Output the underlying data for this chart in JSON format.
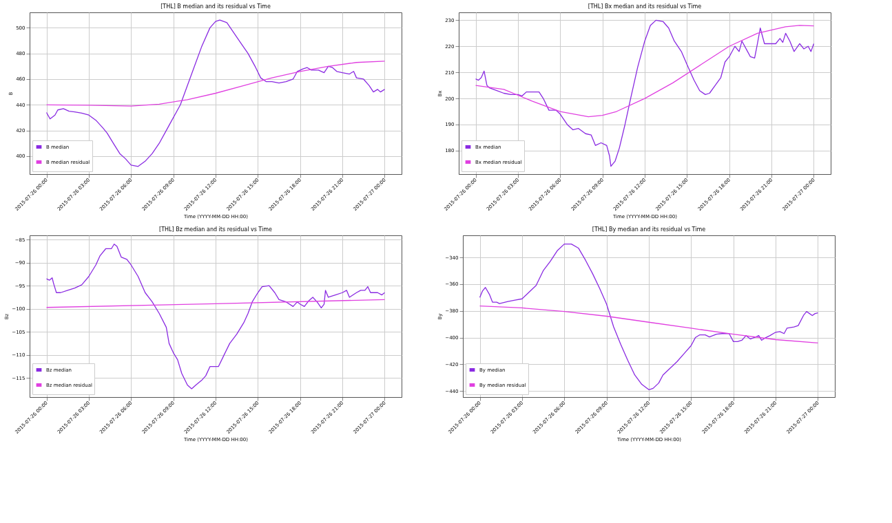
{
  "chart_data": [
    {
      "type": "line",
      "title": "[THL] B median and its residual vs Time",
      "xlabel": "Time (YYYY-MM-DD HH:00)",
      "ylabel": "B",
      "xlim": [
        "2015-07-25T22:48",
        "2015-07-27T01:12"
      ],
      "ylim": [
        386,
        512
      ],
      "xticks": [
        {
          "value": "2015-07-26T00:00",
          "label": "2015-07-26 00:00"
        },
        {
          "value": "2015-07-26T03:00",
          "label": "2015-07-26 03:00"
        },
        {
          "value": "2015-07-26T06:00",
          "label": "2015-07-26 06:00"
        },
        {
          "value": "2015-07-26T09:00",
          "label": "2015-07-26 09:00"
        },
        {
          "value": "2015-07-26T12:00",
          "label": "2015-07-26 12:00"
        },
        {
          "value": "2015-07-26T15:00",
          "label": "2015-07-26 15:00"
        },
        {
          "value": "2015-07-26T18:00",
          "label": "2015-07-26 18:00"
        },
        {
          "value": "2015-07-26T21:00",
          "label": "2015-07-26 21:00"
        },
        {
          "value": "2015-07-27T00:00",
          "label": "2015-07-27 00:00"
        }
      ],
      "yticks": [
        400,
        420,
        440,
        460,
        480,
        500
      ],
      "grid": true,
      "legend": "bottom left",
      "line_style": "solid",
      "series": [
        {
          "name": "B median",
          "color": "#8a2be2",
          "x": [
            "2015-07-26T00:00",
            "2015-07-26T00:15",
            "2015-07-26T00:36",
            "2015-07-26T00:48",
            "2015-07-26T01:12",
            "2015-07-26T01:36",
            "2015-07-26T02:00",
            "2015-07-26T02:30",
            "2015-07-26T03:00",
            "2015-07-26T03:30",
            "2015-07-26T04:00",
            "2015-07-26T04:18",
            "2015-07-26T04:48",
            "2015-07-26T05:12",
            "2015-07-26T05:36",
            "2015-07-26T06:00",
            "2015-07-26T06:30",
            "2015-07-26T07:00",
            "2015-07-26T07:30",
            "2015-07-26T08:00",
            "2015-07-26T08:30",
            "2015-07-26T09:00",
            "2015-07-26T09:30",
            "2015-07-26T10:00",
            "2015-07-26T10:30",
            "2015-07-26T11:00",
            "2015-07-26T11:36",
            "2015-07-26T12:00",
            "2015-07-26T12:18",
            "2015-07-26T12:48",
            "2015-07-26T13:18",
            "2015-07-26T13:48",
            "2015-07-26T14:18",
            "2015-07-26T14:48",
            "2015-07-26T15:12",
            "2015-07-26T15:36",
            "2015-07-26T16:00",
            "2015-07-26T16:30",
            "2015-07-26T17:00",
            "2015-07-26T17:30",
            "2015-07-26T17:48",
            "2015-07-26T18:12",
            "2015-07-26T18:30",
            "2015-07-26T18:48",
            "2015-07-26T19:18",
            "2015-07-26T19:42",
            "2015-07-26T20:00",
            "2015-07-26T20:18",
            "2015-07-26T20:36",
            "2015-07-26T21:00",
            "2015-07-26T21:30",
            "2015-07-26T21:48",
            "2015-07-26T22:00",
            "2015-07-26T22:30",
            "2015-07-26T22:54",
            "2015-07-26T23:12",
            "2015-07-26T23:30",
            "2015-07-26T23:42",
            "2015-07-27T00:00"
          ],
          "values": [
            434,
            429,
            432,
            436,
            437,
            435,
            434.5,
            433.5,
            432,
            428,
            422,
            418,
            409,
            402,
            398,
            393,
            392,
            396,
            402,
            410,
            420,
            430,
            440,
            455,
            470,
            485,
            500,
            505,
            506,
            504,
            496,
            488,
            480,
            470,
            461,
            458,
            458,
            457,
            458,
            460,
            466,
            468,
            469,
            467,
            467,
            465,
            470,
            469,
            466,
            465,
            464,
            466,
            461,
            460,
            455,
            450,
            452,
            450,
            452
          ]
        },
        {
          "name": "B median residual",
          "color": "#e040e0",
          "x": [
            "2015-07-26T00:00",
            "2015-07-26T03:00",
            "2015-07-26T06:00",
            "2015-07-26T08:00",
            "2015-07-26T10:00",
            "2015-07-26T12:00",
            "2015-07-26T14:00",
            "2015-07-26T16:00",
            "2015-07-26T18:00",
            "2015-07-26T20:00",
            "2015-07-26T22:00",
            "2015-07-27T00:00"
          ],
          "values": [
            440,
            439.7,
            439,
            440.5,
            444,
            449,
            455,
            461,
            466,
            470,
            473,
            474
          ]
        }
      ]
    },
    {
      "type": "line",
      "title": "[THL] Bx median and its residual vs Time",
      "xlabel": "Time (YYYY-MM-DD HH:00)",
      "ylabel": "Bx",
      "xlim": [
        "2015-07-25T22:48",
        "2015-07-27T01:12"
      ],
      "ylim": [
        171,
        233
      ],
      "xticks": [
        {
          "value": "2015-07-26T00:00",
          "label": "2015-07-26 00:00"
        },
        {
          "value": "2015-07-26T03:00",
          "label": "2015-07-26 03:00"
        },
        {
          "value": "2015-07-26T06:00",
          "label": "2015-07-26 06:00"
        },
        {
          "value": "2015-07-26T09:00",
          "label": "2015-07-26 09:00"
        },
        {
          "value": "2015-07-26T12:00",
          "label": "2015-07-26 12:00"
        },
        {
          "value": "2015-07-26T15:00",
          "label": "2015-07-26 15:00"
        },
        {
          "value": "2015-07-26T18:00",
          "label": "2015-07-26 18:00"
        },
        {
          "value": "2015-07-26T21:00",
          "label": "2015-07-26 21:00"
        },
        {
          "value": "2015-07-27T00:00",
          "label": "2015-07-27 00:00"
        }
      ],
      "yticks": [
        180,
        190,
        200,
        210,
        220,
        230
      ],
      "grid": true,
      "legend": "bottom left",
      "line_style": "solid",
      "series": [
        {
          "name": "Bx median",
          "color": "#8a2be2",
          "x": [
            "2015-07-26T00:00",
            "2015-07-26T00:12",
            "2015-07-26T00:24",
            "2015-07-26T00:36",
            "2015-07-26T00:48",
            "2015-07-26T01:00",
            "2015-07-26T01:30",
            "2015-07-26T02:00",
            "2015-07-26T02:30",
            "2015-07-26T03:00",
            "2015-07-26T03:18",
            "2015-07-26T03:36",
            "2015-07-26T04:00",
            "2015-07-26T04:30",
            "2015-07-26T04:48",
            "2015-07-26T05:12",
            "2015-07-26T05:42",
            "2015-07-26T06:00",
            "2015-07-26T06:30",
            "2015-07-26T06:54",
            "2015-07-26T07:18",
            "2015-07-26T07:48",
            "2015-07-26T08:12",
            "2015-07-26T08:30",
            "2015-07-26T08:54",
            "2015-07-26T09:18",
            "2015-07-26T09:30",
            "2015-07-26T09:36",
            "2015-07-26T09:54",
            "2015-07-26T10:12",
            "2015-07-26T10:36",
            "2015-07-26T11:00",
            "2015-07-26T11:30",
            "2015-07-26T12:00",
            "2015-07-26T12:24",
            "2015-07-26T12:48",
            "2015-07-26T13:18",
            "2015-07-26T13:42",
            "2015-07-26T14:06",
            "2015-07-26T14:36",
            "2015-07-26T15:00",
            "2015-07-26T15:30",
            "2015-07-26T15:54",
            "2015-07-26T16:18",
            "2015-07-26T16:36",
            "2015-07-26T17:00",
            "2015-07-26T17:24",
            "2015-07-26T17:42",
            "2015-07-26T18:00",
            "2015-07-26T18:24",
            "2015-07-26T18:42",
            "2015-07-26T18:54",
            "2015-07-26T19:18",
            "2015-07-26T19:30",
            "2015-07-26T19:48",
            "2015-07-26T20:00",
            "2015-07-26T20:12",
            "2015-07-26T20:30",
            "2015-07-26T21:00",
            "2015-07-26T21:18",
            "2015-07-26T21:36",
            "2015-07-26T21:48",
            "2015-07-26T22:00",
            "2015-07-26T22:18",
            "2015-07-26T22:36",
            "2015-07-26T23:00",
            "2015-07-26T23:18",
            "2015-07-26T23:36",
            "2015-07-26T23:48",
            "2015-07-27T00:00"
          ],
          "values": [
            207.5,
            207,
            208,
            210.5,
            205,
            204,
            203,
            202,
            201.5,
            201.5,
            201,
            202.5,
            202.5,
            202.5,
            200,
            195.5,
            195.5,
            194,
            190,
            188,
            188.5,
            186.5,
            186,
            182,
            183,
            182,
            178,
            174,
            176,
            181,
            190,
            200,
            212,
            222,
            228,
            230,
            229.5,
            227,
            222,
            218,
            213,
            207,
            203,
            201.5,
            202,
            205,
            208,
            214,
            216,
            220,
            218,
            222,
            218,
            216,
            215.5,
            221,
            227,
            221,
            221,
            221,
            223,
            221.5,
            225,
            222,
            218,
            221,
            219,
            220,
            218,
            221
          ]
        },
        {
          "name": "Bx median residual",
          "color": "#e040e0",
          "x": [
            "2015-07-26T00:00",
            "2015-07-26T02:00",
            "2015-07-26T04:00",
            "2015-07-26T06:00",
            "2015-07-26T08:00",
            "2015-07-26T09:00",
            "2015-07-26T10:00",
            "2015-07-26T12:00",
            "2015-07-26T14:00",
            "2015-07-26T16:00",
            "2015-07-26T18:00",
            "2015-07-26T20:00",
            "2015-07-26T22:00",
            "2015-07-26T23:00",
            "2015-07-27T00:00"
          ],
          "values": [
            205,
            203.5,
            199,
            195,
            193,
            193.5,
            195,
            200,
            206,
            213,
            220,
            225,
            227.5,
            228,
            227.8
          ]
        }
      ]
    },
    {
      "type": "line",
      "title": "[THL] Bz median and its residual vs Time",
      "xlabel": "Time (YYYY-MM-DD HH:00)",
      "ylabel": "Bz",
      "xlim": [
        "2015-07-25T22:48",
        "2015-07-27T01:12"
      ],
      "ylim": [
        -119.1,
        -84.1
      ],
      "xticks": [
        {
          "value": "2015-07-26T00:00",
          "label": "2015-07-26 00:00"
        },
        {
          "value": "2015-07-26T03:00",
          "label": "2015-07-26 03:00"
        },
        {
          "value": "2015-07-26T06:00",
          "label": "2015-07-26 06:00"
        },
        {
          "value": "2015-07-26T09:00",
          "label": "2015-07-26 09:00"
        },
        {
          "value": "2015-07-26T12:00",
          "label": "2015-07-26 12:00"
        },
        {
          "value": "2015-07-26T15:00",
          "label": "2015-07-26 15:00"
        },
        {
          "value": "2015-07-26T18:00",
          "label": "2015-07-26 18:00"
        },
        {
          "value": "2015-07-26T21:00",
          "label": "2015-07-26 21:00"
        },
        {
          "value": "2015-07-27T00:00",
          "label": "2015-07-27 00:00"
        }
      ],
      "yticks": [
        -115,
        -110,
        -105,
        -100,
        -95,
        -90,
        -85
      ],
      "grid": true,
      "legend": "bottom left",
      "line_style": "solid",
      "series": [
        {
          "name": "Bz median",
          "color": "#8a2be2",
          "x": [
            "2015-07-26T00:00",
            "2015-07-26T00:12",
            "2015-07-26T00:24",
            "2015-07-26T00:30",
            "2015-07-26T00:42",
            "2015-07-26T01:00",
            "2015-07-26T01:30",
            "2015-07-26T02:00",
            "2015-07-26T02:30",
            "2015-07-26T03:00",
            "2015-07-26T03:30",
            "2015-07-26T03:48",
            "2015-07-26T04:12",
            "2015-07-26T04:36",
            "2015-07-26T04:48",
            "2015-07-26T05:00",
            "2015-07-26T05:18",
            "2015-07-26T05:42",
            "2015-07-26T06:00",
            "2015-07-26T06:30",
            "2015-07-26T07:00",
            "2015-07-26T07:30",
            "2015-07-26T08:00",
            "2015-07-26T08:30",
            "2015-07-26T08:42",
            "2015-07-26T09:00",
            "2015-07-26T09:18",
            "2015-07-26T09:36",
            "2015-07-26T10:00",
            "2015-07-26T10:18",
            "2015-07-26T10:36",
            "2015-07-26T11:00",
            "2015-07-26T11:18",
            "2015-07-26T11:36",
            "2015-07-26T12:00",
            "2015-07-26T12:12",
            "2015-07-26T12:36",
            "2015-07-26T13:00",
            "2015-07-26T13:30",
            "2015-07-26T14:00",
            "2015-07-26T14:18",
            "2015-07-26T14:36",
            "2015-07-26T15:00",
            "2015-07-26T15:18",
            "2015-07-26T15:48",
            "2015-07-26T16:12",
            "2015-07-26T16:30",
            "2015-07-26T17:00",
            "2015-07-26T17:30",
            "2015-07-26T17:48",
            "2015-07-26T18:00",
            "2015-07-26T18:18",
            "2015-07-26T18:36",
            "2015-07-26T18:54",
            "2015-07-26T19:12",
            "2015-07-26T19:30",
            "2015-07-26T19:42",
            "2015-07-26T19:48",
            "2015-07-26T20:00",
            "2015-07-26T20:30",
            "2015-07-26T21:00",
            "2015-07-26T21:18",
            "2015-07-26T21:30",
            "2015-07-26T22:00",
            "2015-07-26T22:18",
            "2015-07-26T22:36",
            "2015-07-26T22:48",
            "2015-07-26T23:00",
            "2015-07-26T23:30",
            "2015-07-26T23:48",
            "2015-07-27T00:00"
          ],
          "values": [
            -93.5,
            -93.8,
            -93.3,
            -94.5,
            -96.5,
            -96.5,
            -96,
            -95.5,
            -94.8,
            -93,
            -90.5,
            -88.5,
            -87,
            -87,
            -86,
            -86.5,
            -88.8,
            -89.3,
            -90.5,
            -93,
            -96.5,
            -98.5,
            -101,
            -104,
            -107.5,
            -109.5,
            -111,
            -114,
            -116.5,
            -117.3,
            -116.5,
            -115.5,
            -114.5,
            -112.5,
            -112.5,
            -112.5,
            -110,
            -107.5,
            -105.5,
            -103,
            -101,
            -98.5,
            -96.5,
            -95.2,
            -95,
            -96.5,
            -98,
            -98.5,
            -99.5,
            -98.5,
            -99,
            -99.5,
            -98.3,
            -97.5,
            -98.5,
            -99.8,
            -99,
            -96,
            -97.5,
            -97,
            -96.5,
            -96,
            -97.5,
            -96.5,
            -96,
            -96,
            -95.2,
            -96.5,
            -96.5,
            -97,
            -96.5
          ]
        },
        {
          "name": "Bz median residual",
          "color": "#e040e0",
          "x": [
            "2015-07-26T00:00",
            "2015-07-26T12:00",
            "2015-07-27T00:00"
          ],
          "values": [
            -99.7,
            -98.9,
            -98.0
          ]
        }
      ]
    },
    {
      "type": "line",
      "title": "[THL] By median and its residual vs Time",
      "xlabel": "Time (YYYY-MM-DD HH:00)",
      "ylabel": "By",
      "xlim": [
        "2015-07-25T22:48",
        "2015-07-27T01:12"
      ],
      "ylim": [
        -444.5,
        -323.5
      ],
      "xticks": [
        {
          "value": "2015-07-26T00:00",
          "label": "2015-07-26 00:00"
        },
        {
          "value": "2015-07-26T03:00",
          "label": "2015-07-26 03:00"
        },
        {
          "value": "2015-07-26T06:00",
          "label": "2015-07-26 06:00"
        },
        {
          "value": "2015-07-26T09:00",
          "label": "2015-07-26 09:00"
        },
        {
          "value": "2015-07-26T12:00",
          "label": "2015-07-26 12:00"
        },
        {
          "value": "2015-07-26T15:00",
          "label": "2015-07-26 15:00"
        },
        {
          "value": "2015-07-26T18:00",
          "label": "2015-07-26 18:00"
        },
        {
          "value": "2015-07-26T21:00",
          "label": "2015-07-26 21:00"
        },
        {
          "value": "2015-07-27T00:00",
          "label": "2015-07-27 00:00"
        }
      ],
      "yticks": [
        -440,
        -420,
        -400,
        -380,
        -360,
        -340
      ],
      "grid": true,
      "legend": "bottom left",
      "line_style": "solid",
      "series": [
        {
          "name": "By median",
          "color": "#8a2be2",
          "x": [
            "2015-07-26T00:00",
            "2015-07-26T00:12",
            "2015-07-26T00:24",
            "2015-07-26T00:42",
            "2015-07-26T00:54",
            "2015-07-26T01:12",
            "2015-07-26T01:24",
            "2015-07-26T02:00",
            "2015-07-26T02:30",
            "2015-07-26T03:00",
            "2015-07-26T03:30",
            "2015-07-26T04:00",
            "2015-07-26T04:30",
            "2015-07-26T05:00",
            "2015-07-26T05:30",
            "2015-07-26T06:00",
            "2015-07-26T06:30",
            "2015-07-26T07:00",
            "2015-07-26T07:30",
            "2015-07-26T08:00",
            "2015-07-26T08:30",
            "2015-07-26T09:00",
            "2015-07-26T09:30",
            "2015-07-26T10:00",
            "2015-07-26T10:30",
            "2015-07-26T11:00",
            "2015-07-26T11:30",
            "2015-07-26T12:00",
            "2015-07-26T12:18",
            "2015-07-26T12:42",
            "2015-07-26T13:00",
            "2015-07-26T13:30",
            "2015-07-26T14:00",
            "2015-07-26T14:30",
            "2015-07-26T15:00",
            "2015-07-26T15:18",
            "2015-07-26T15:36",
            "2015-07-26T16:00",
            "2015-07-26T16:18",
            "2015-07-26T16:48",
            "2015-07-26T17:12",
            "2015-07-26T17:42",
            "2015-07-26T18:00",
            "2015-07-26T18:18",
            "2015-07-26T18:36",
            "2015-07-26T18:54",
            "2015-07-26T19:12",
            "2015-07-26T19:36",
            "2015-07-26T19:48",
            "2015-07-26T20:00",
            "2015-07-26T20:18",
            "2015-07-26T20:36",
            "2015-07-26T21:00",
            "2015-07-26T21:18",
            "2015-07-26T21:36",
            "2015-07-26T21:48",
            "2015-07-26T22:18",
            "2015-07-26T22:36",
            "2015-07-26T23:00",
            "2015-07-26T23:12",
            "2015-07-26T23:24",
            "2015-07-26T23:36",
            "2015-07-26T23:48",
            "2015-07-27T00:00"
          ],
          "values": [
            -370,
            -365,
            -362.5,
            -368,
            -373.5,
            -373.5,
            -374.5,
            -373,
            -372,
            -371,
            -366,
            -361,
            -350,
            -343,
            -335,
            -330,
            -330,
            -333,
            -342,
            -352,
            -363,
            -375,
            -392,
            -405,
            -417,
            -428,
            -435,
            -439,
            -438,
            -434,
            -428,
            -423,
            -418,
            -412,
            -406,
            -400,
            -398,
            -398,
            -399.5,
            -397.5,
            -397,
            -397,
            -403,
            -403,
            -402,
            -398.5,
            -401,
            -399.5,
            -398.5,
            -402,
            -400,
            -398.5,
            -396,
            -395.5,
            -397,
            -393,
            -392,
            -391,
            -383,
            -380.5,
            -382,
            -383.5,
            -382,
            -381.5
          ]
        },
        {
          "name": "By median residual",
          "color": "#e040e0",
          "x": [
            "2015-07-26T00:00",
            "2015-07-26T03:00",
            "2015-07-26T06:00",
            "2015-07-26T09:00",
            "2015-07-26T12:00",
            "2015-07-26T15:00",
            "2015-07-26T18:00",
            "2015-07-26T21:00",
            "2015-07-27T00:00"
          ],
          "values": [
            -376.3,
            -377.8,
            -380.5,
            -384,
            -388.5,
            -393,
            -397.5,
            -401.5,
            -404
          ]
        }
      ]
    }
  ]
}
